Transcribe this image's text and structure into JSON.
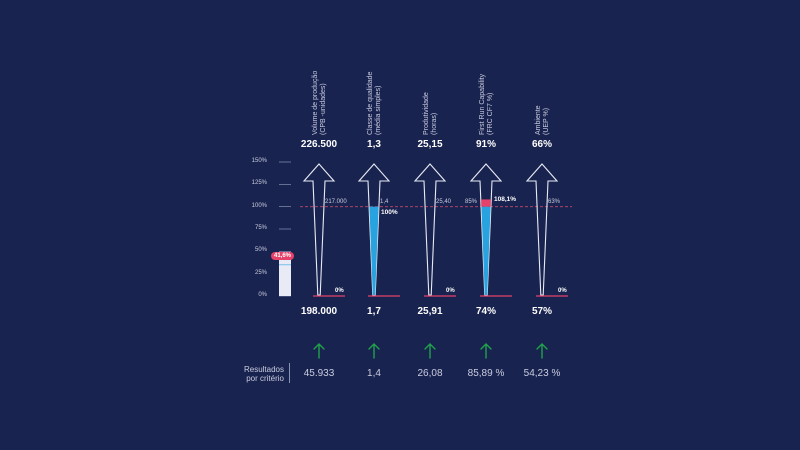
{
  "colors": {
    "background": "#19234f",
    "arrow_outline": "#e8ebf5",
    "fill_blue": "#29a3e0",
    "accent_pink": "#e5416a",
    "reference_line": "#c2476d",
    "grid": "#8b92b5",
    "up_arrow_green": "#1fa34a",
    "global_bar": "#e8ebf5"
  },
  "chart_data": {
    "type": "bar",
    "y_axis": {
      "ticks": [
        "150%",
        "125%",
        "100%",
        "75%",
        "50%",
        "25%",
        "0%"
      ],
      "tick_values": [
        150,
        125,
        100,
        75,
        50,
        25,
        0
      ],
      "ylim": [
        0,
        150
      ]
    },
    "reference_line_value": 100,
    "global_bar": {
      "value": 41.6,
      "label": "41,6%"
    },
    "criteria": [
      {
        "label_line1": "Volume de produção",
        "label_line2": "(CPB -unidades)",
        "target": "226.500",
        "baseline": "198.000",
        "reference": "217.000",
        "progress": 0,
        "progress_label": "0%",
        "result": "45.933",
        "trend": "up-arrow-icon"
      },
      {
        "label_line1": "Classe de qualidade",
        "label_line2": "(média simples)",
        "target": "1,3",
        "baseline": "1,7",
        "reference": "1,4",
        "progress": 100,
        "progress_label": "100%",
        "result": "1,4",
        "trend": "up-arrow-icon"
      },
      {
        "label_line1": "Produtividade",
        "label_line2": "(horas)",
        "target": "25,15",
        "baseline": "25,91",
        "reference": "25,40",
        "progress": 0,
        "progress_label": "0%",
        "result": "26,08",
        "trend": "up-arrow-icon"
      },
      {
        "label_line1": "First Run Capability",
        "label_line2": "(FRC CF7 %)",
        "target": "91%",
        "baseline": "74%",
        "reference": "85%",
        "progress": 108.1,
        "progress_label": "108,1%",
        "result": "85,89 %",
        "trend": "up-arrow-icon"
      },
      {
        "label_line1": "Ambiente",
        "label_line2": "(UEP %)",
        "target": "66%",
        "baseline": "57%",
        "reference": "63%",
        "progress": 0,
        "progress_label": "0%",
        "result": "54,23 %",
        "trend": "up-arrow-icon"
      }
    ],
    "results_title_line1": "Resultados",
    "results_title_line2": "por critério"
  }
}
